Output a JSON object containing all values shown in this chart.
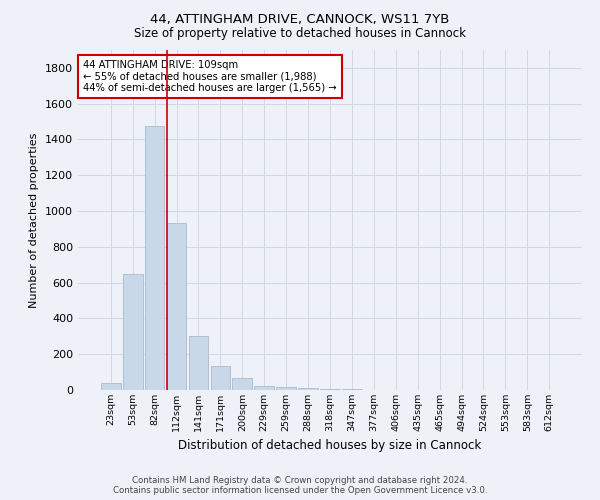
{
  "title1": "44, ATTINGHAM DRIVE, CANNOCK, WS11 7YB",
  "title2": "Size of property relative to detached houses in Cannock",
  "xlabel": "Distribution of detached houses by size in Cannock",
  "ylabel": "Number of detached properties",
  "bar_labels": [
    "23sqm",
    "53sqm",
    "82sqm",
    "112sqm",
    "141sqm",
    "171sqm",
    "200sqm",
    "229sqm",
    "259sqm",
    "288sqm",
    "318sqm",
    "347sqm",
    "377sqm",
    "406sqm",
    "435sqm",
    "465sqm",
    "494sqm",
    "524sqm",
    "553sqm",
    "583sqm",
    "612sqm"
  ],
  "bar_values": [
    38,
    650,
    1475,
    935,
    300,
    135,
    65,
    25,
    18,
    10,
    5,
    3,
    2,
    1,
    0,
    0,
    0,
    0,
    0,
    0,
    0
  ],
  "bar_color": "#c8d8e8",
  "bar_edgecolor": "#aabbcc",
  "vline_color": "#cc0000",
  "annotation_text": "44 ATTINGHAM DRIVE: 109sqm\n← 55% of detached houses are smaller (1,988)\n44% of semi-detached houses are larger (1,565) →",
  "annotation_box_edgecolor": "#cc0000",
  "annotation_box_facecolor": "#ffffff",
  "ylim": [
    0,
    1900
  ],
  "yticks": [
    0,
    200,
    400,
    600,
    800,
    1000,
    1200,
    1400,
    1600,
    1800
  ],
  "footer_line1": "Contains HM Land Registry data © Crown copyright and database right 2024.",
  "footer_line2": "Contains public sector information licensed under the Open Government Licence v3.0.",
  "grid_color": "#d0d8e8",
  "bg_color": "#eef2f8"
}
